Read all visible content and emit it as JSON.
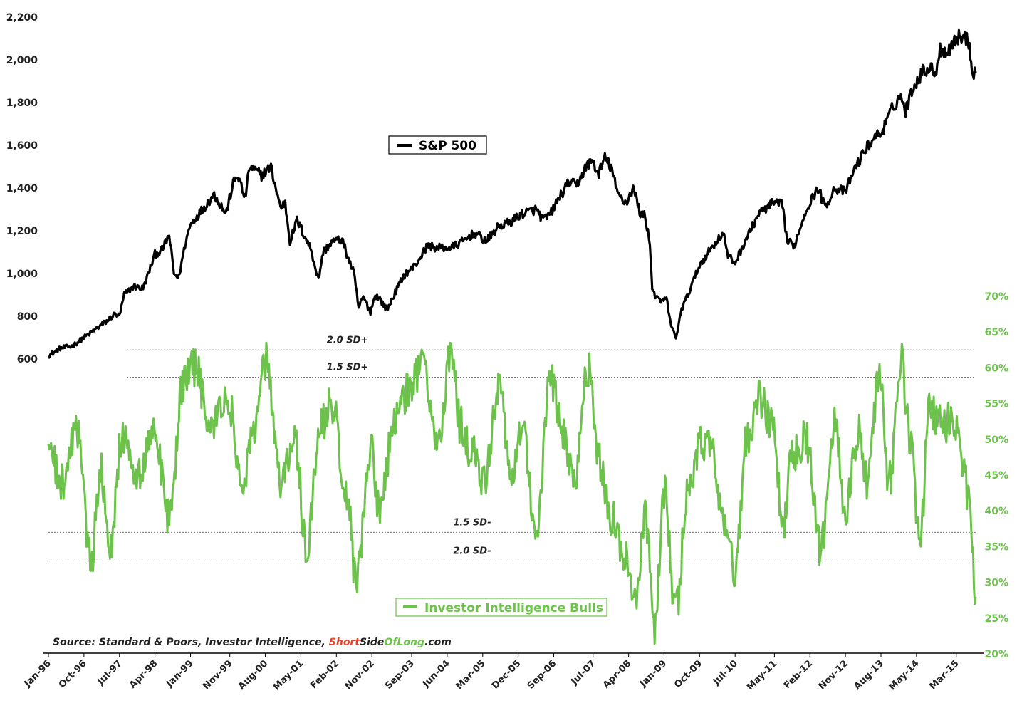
{
  "chart_data": {
    "type": "line",
    "left_axis": {
      "min": 600,
      "max": 2200,
      "ticks": [
        "2,200",
        "2,000",
        "1,800",
        "1,600",
        "1,400",
        "1,200",
        "1,000",
        "800",
        "600"
      ],
      "tick_values": [
        2200,
        2000,
        1800,
        1600,
        1400,
        1200,
        1000,
        800,
        600
      ]
    },
    "right_axis": {
      "min": 20,
      "max": 70,
      "ticks": [
        "70%",
        "65%",
        "60%",
        "55%",
        "50%",
        "45%",
        "40%",
        "35%",
        "30%",
        "25%",
        "20%"
      ],
      "tick_values": [
        70,
        65,
        60,
        55,
        50,
        45,
        40,
        35,
        30,
        25,
        20
      ]
    },
    "x_axis": {
      "start": 1996.0,
      "end": 2015.58,
      "ticks": [
        "Jan-96",
        "Oct-96",
        "Jul-97",
        "Apr-98",
        "Jan-99",
        "Nov-99",
        "Aug-00",
        "May-01",
        "Feb-02",
        "Nov-02",
        "Sep-03",
        "Jun-04",
        "Mar-05",
        "Dec-05",
        "Sep-06",
        "Jul-07",
        "Apr-08",
        "Jan-09",
        "Oct-09",
        "Jul-10",
        "May-11",
        "Feb-12",
        "Nov-12",
        "Aug-13",
        "May-14",
        "Mar-15"
      ],
      "tick_positions": [
        1996.0,
        1996.75,
        1997.5,
        1998.25,
        1999.0,
        1999.83,
        2000.58,
        2001.33,
        2002.08,
        2002.83,
        2003.67,
        2004.42,
        2005.17,
        2005.92,
        2006.67,
        2007.5,
        2008.25,
        2009.0,
        2009.75,
        2010.5,
        2011.33,
        2012.08,
        2012.83,
        2013.58,
        2014.33,
        2015.17
      ]
    },
    "series": [
      {
        "name": "S&P 500",
        "color": "#000000",
        "axis": "left",
        "points": [
          [
            1996.0,
            615
          ],
          [
            1996.25,
            650
          ],
          [
            1996.5,
            660
          ],
          [
            1996.75,
            700
          ],
          [
            1997.0,
            740
          ],
          [
            1997.25,
            780
          ],
          [
            1997.4,
            810
          ],
          [
            1997.5,
            800
          ],
          [
            1997.6,
            900
          ],
          [
            1997.8,
            940
          ],
          [
            1998.0,
            930
          ],
          [
            1998.25,
            1090
          ],
          [
            1998.4,
            1110
          ],
          [
            1998.55,
            1180
          ],
          [
            1998.65,
            1000
          ],
          [
            1998.75,
            980
          ],
          [
            1998.9,
            1150
          ],
          [
            1999.0,
            1230
          ],
          [
            1999.25,
            1300
          ],
          [
            1999.5,
            1370
          ],
          [
            1999.75,
            1280
          ],
          [
            1999.9,
            1420
          ],
          [
            2000.0,
            1460
          ],
          [
            2000.15,
            1350
          ],
          [
            2000.25,
            1500
          ],
          [
            2000.5,
            1460
          ],
          [
            2000.7,
            1500
          ],
          [
            2000.8,
            1400
          ],
          [
            2000.9,
            1310
          ],
          [
            2001.0,
            1330
          ],
          [
            2001.1,
            1150
          ],
          [
            2001.25,
            1250
          ],
          [
            2001.4,
            1180
          ],
          [
            2001.55,
            1110
          ],
          [
            2001.7,
            970
          ],
          [
            2001.8,
            1100
          ],
          [
            2002.0,
            1150
          ],
          [
            2002.2,
            1160
          ],
          [
            2002.3,
            1090
          ],
          [
            2002.45,
            1000
          ],
          [
            2002.55,
            840
          ],
          [
            2002.65,
            890
          ],
          [
            2002.8,
            820
          ],
          [
            2002.9,
            900
          ],
          [
            2003.0,
            880
          ],
          [
            2003.15,
            830
          ],
          [
            2003.3,
            900
          ],
          [
            2003.5,
            990
          ],
          [
            2003.75,
            1040
          ],
          [
            2004.0,
            1130
          ],
          [
            2004.2,
            1120
          ],
          [
            2004.5,
            1120
          ],
          [
            2004.75,
            1150
          ],
          [
            2005.0,
            1190
          ],
          [
            2005.25,
            1150
          ],
          [
            2005.5,
            1220
          ],
          [
            2005.75,
            1240
          ],
          [
            2006.0,
            1280
          ],
          [
            2006.3,
            1300
          ],
          [
            2006.45,
            1250
          ],
          [
            2006.6,
            1280
          ],
          [
            2006.8,
            1360
          ],
          [
            2007.0,
            1430
          ],
          [
            2007.15,
            1410
          ],
          [
            2007.35,
            1500
          ],
          [
            2007.5,
            1530
          ],
          [
            2007.6,
            1460
          ],
          [
            2007.75,
            1540
          ],
          [
            2007.9,
            1490
          ],
          [
            2008.0,
            1380
          ],
          [
            2008.2,
            1330
          ],
          [
            2008.35,
            1400
          ],
          [
            2008.5,
            1280
          ],
          [
            2008.6,
            1270
          ],
          [
            2008.7,
            1140
          ],
          [
            2008.75,
            930
          ],
          [
            2008.85,
            880
          ],
          [
            2008.95,
            870
          ],
          [
            2009.05,
            880
          ],
          [
            2009.15,
            760
          ],
          [
            2009.25,
            690
          ],
          [
            2009.35,
            820
          ],
          [
            2009.5,
            900
          ],
          [
            2009.75,
            1040
          ],
          [
            2010.0,
            1120
          ],
          [
            2010.25,
            1190
          ],
          [
            2010.35,
            1080
          ],
          [
            2010.5,
            1050
          ],
          [
            2010.75,
            1170
          ],
          [
            2011.0,
            1280
          ],
          [
            2011.3,
            1330
          ],
          [
            2011.5,
            1320
          ],
          [
            2011.6,
            1150
          ],
          [
            2011.75,
            1130
          ],
          [
            2012.0,
            1300
          ],
          [
            2012.25,
            1400
          ],
          [
            2012.4,
            1310
          ],
          [
            2012.6,
            1400
          ],
          [
            2012.83,
            1380
          ],
          [
            2013.0,
            1480
          ],
          [
            2013.25,
            1580
          ],
          [
            2013.45,
            1640
          ],
          [
            2013.6,
            1660
          ],
          [
            2013.83,
            1780
          ],
          [
            2014.0,
            1830
          ],
          [
            2014.1,
            1760
          ],
          [
            2014.25,
            1870
          ],
          [
            2014.5,
            1960
          ],
          [
            2014.75,
            1950
          ],
          [
            2014.83,
            2050
          ],
          [
            2015.0,
            2040
          ],
          [
            2015.15,
            2100
          ],
          [
            2015.3,
            2110
          ],
          [
            2015.45,
            2080
          ],
          [
            2015.5,
            1950
          ],
          [
            2015.58,
            1940
          ]
        ]
      },
      {
        "name": "Investor Intelligence Bulls",
        "color": "#6cc24a",
        "axis": "right",
        "seed": 20150821
      }
    ],
    "sd_bands": [
      {
        "label": "2.0 SD+",
        "value": 62.5
      },
      {
        "label": "1.5 SD+",
        "value": 58.7
      },
      {
        "label": "1.5 SD-",
        "value": 37.0
      },
      {
        "label": "2.0 SD-",
        "value": 33.0
      }
    ],
    "legend": [
      {
        "label": "S&P 500",
        "color": "#000000"
      },
      {
        "label": "Investor Intelligence Bulls",
        "color": "#6cc24a"
      }
    ]
  },
  "source": {
    "prefix": "Source: Standard & Poors, Investor Intelligence, ",
    "brand_short": "Short",
    "brand_side": "Side",
    "brand_of": "Of",
    "brand_long": "Long",
    "suffix": ".com",
    "colors": {
      "short": "#e8402a",
      "side": "#222222",
      "of": "#222222",
      "long": "#6cc24a"
    }
  },
  "colors": {
    "green": "#6cc24a",
    "black": "#000000",
    "dotted": "#777777"
  }
}
